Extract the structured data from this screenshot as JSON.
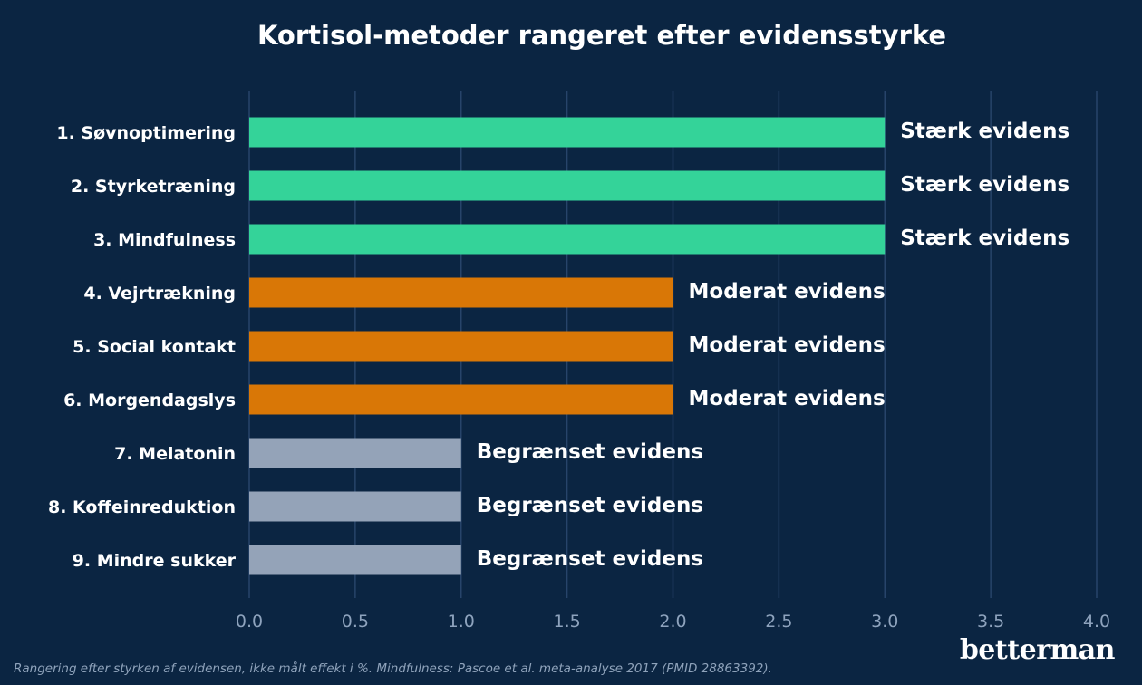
{
  "chart_data": {
    "type": "bar",
    "orientation": "horizontal",
    "title": "Kortisol-metoder rangeret efter evidensstyrke",
    "categories": [
      "1. Søvnoptimering",
      "2. Styrketræning",
      "3. Mindfulness",
      "4. Vejrtrækning",
      "5. Social kontakt",
      "6. Morgendagslys",
      "7. Melatonin",
      "8. Koffeinreduktion",
      "9. Mindre sukker"
    ],
    "values": [
      3,
      3,
      3,
      2,
      2,
      2,
      1,
      1,
      1
    ],
    "data_labels": [
      "Stærk evidens",
      "Stærk evidens",
      "Stærk evidens",
      "Moderat evidens",
      "Moderat evidens",
      "Moderat evidens",
      "Begrænset evidens",
      "Begrænset evidens",
      "Begrænset evidens"
    ],
    "bar_colors": [
      "#34d399",
      "#34d399",
      "#34d399",
      "#d97706",
      "#d97706",
      "#d97706",
      "#94a3b8",
      "#94a3b8",
      "#94a3b8"
    ],
    "xlim": [
      0,
      4
    ],
    "xticks": [
      0.0,
      0.5,
      1.0,
      1.5,
      2.0,
      2.5,
      3.0,
      3.5,
      4.0
    ],
    "xtick_labels": [
      "0.0",
      "0.5",
      "1.0",
      "1.5",
      "2.0",
      "2.5",
      "3.0",
      "3.5",
      "4.0"
    ],
    "xlabel": "",
    "ylabel": "",
    "grid": "vertical",
    "background": "#0b2542",
    "grid_color": "#27446a"
  },
  "footnote": "Rangering efter styrken af evidensen, ikke målt effekt i %. Mindfulness: Pascoe et al. meta-analyse 2017 (PMID 28863392).",
  "brand": "betterman"
}
